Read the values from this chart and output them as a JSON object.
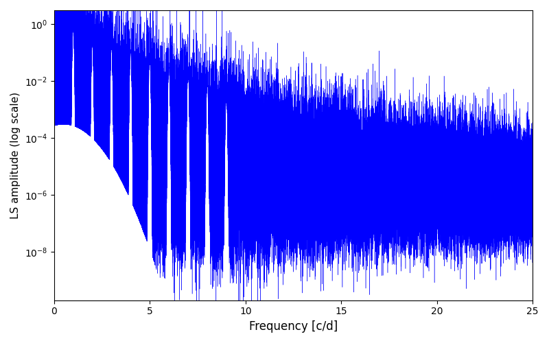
{
  "title": "",
  "xlabel": "Frequency [c/d]",
  "ylabel": "LS amplitude (log scale)",
  "xlim": [
    0,
    25
  ],
  "ylim_low": 2e-10,
  "ylim_high": 3.0,
  "line_color": "#0000ff",
  "line_width": 0.3,
  "yscale": "log",
  "yticks": [
    1.0,
    0.01,
    0.0001,
    1e-06,
    1e-08
  ],
  "xticks": [
    0,
    5,
    10,
    15,
    20,
    25
  ],
  "figsize": [
    8.0,
    5.0
  ],
  "dpi": 100,
  "seed": 12345,
  "n_points": 100000,
  "freq_max": 25.0
}
